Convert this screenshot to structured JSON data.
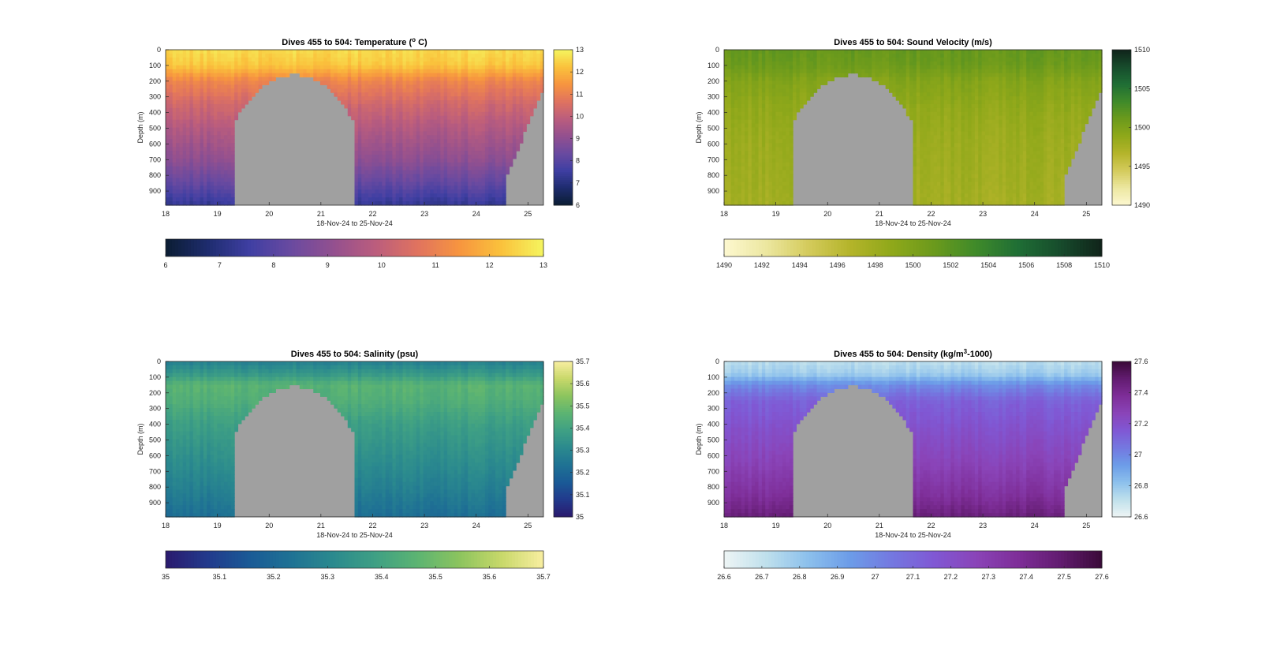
{
  "figure": {
    "y_label": "Depth (m)",
    "x_label": "18-Nov-24 to 25-Nov-24",
    "x_ticks": [
      "18",
      "19",
      "20",
      "21",
      "22",
      "23",
      "24",
      "25"
    ],
    "y_ticks": [
      "0",
      "100",
      "200",
      "300",
      "400",
      "500",
      "600",
      "700",
      "800",
      "900"
    ]
  },
  "chart_data": [
    {
      "type": "heatmap",
      "title": "Dives 455 to 504: Temperature (",
      "title_sup": "o",
      "title_end": " C)",
      "xlim": [
        18,
        25.3
      ],
      "ylim": [
        0,
        990
      ],
      "y_reversed": true,
      "clim": [
        6,
        13
      ],
      "cb_side_ticks": [
        "13",
        "12",
        "11",
        "10",
        "9",
        "8",
        "7",
        "6"
      ],
      "cb_bottom_ticks": [
        "6",
        "7",
        "8",
        "9",
        "10",
        "11",
        "12",
        "13"
      ],
      "colormap": [
        "#0b1d33",
        "#1e2c6e",
        "#3f3fa3",
        "#6a4aa0",
        "#93508f",
        "#bb5d7d",
        "#e0735f",
        "#f7953f",
        "#fac23c",
        "#f5f55f"
      ],
      "profile": [
        {
          "depth": 0,
          "value": 12.6
        },
        {
          "depth": 100,
          "value": 12.3
        },
        {
          "depth": 200,
          "value": 11.1
        },
        {
          "depth": 350,
          "value": 10.3
        },
        {
          "depth": 500,
          "value": 9.7
        },
        {
          "depth": 700,
          "value": 9.0
        },
        {
          "depth": 850,
          "value": 8.2
        },
        {
          "depth": 990,
          "value": 7.3
        }
      ],
      "missing_color": "#a0a0a0"
    },
    {
      "type": "heatmap",
      "title": "Dives 455 to 504: Sound Velocity (m/s)",
      "title_sup": "",
      "title_end": "",
      "xlim": [
        18,
        25.3
      ],
      "ylim": [
        0,
        990
      ],
      "y_reversed": true,
      "clim": [
        1490,
        1510
      ],
      "cb_side_ticks": [
        "1510",
        "1505",
        "1500",
        "1495",
        "1490"
      ],
      "cb_bottom_ticks": [
        "1490",
        "1492",
        "1494",
        "1496",
        "1498",
        "1500",
        "1502",
        "1504",
        "1506",
        "1508",
        "1510"
      ],
      "colormap": [
        "#fdf8d0",
        "#ece7a0",
        "#d4cb5c",
        "#b4b42a",
        "#8fa81a",
        "#6b9a1c",
        "#3f8a2a",
        "#1f6e35",
        "#174c2c",
        "#10231a"
      ],
      "profile": [
        {
          "depth": 0,
          "value": 1501.4
        },
        {
          "depth": 100,
          "value": 1501.0
        },
        {
          "depth": 200,
          "value": 1499.6
        },
        {
          "depth": 400,
          "value": 1498.6
        },
        {
          "depth": 600,
          "value": 1498.1
        },
        {
          "depth": 800,
          "value": 1497.9
        },
        {
          "depth": 990,
          "value": 1497.6
        }
      ],
      "missing_color": "#a0a0a0"
    },
    {
      "type": "heatmap",
      "title": "Dives 455 to 504: Salinity (psu)",
      "title_sup": "",
      "title_end": "",
      "xlim": [
        18,
        25.3
      ],
      "ylim": [
        0,
        990
      ],
      "y_reversed": true,
      "clim": [
        35,
        35.7
      ],
      "cb_side_ticks": [
        "35.7",
        "35.6",
        "35.5",
        "35.4",
        "35.3",
        "35.2",
        "35.1",
        "35"
      ],
      "cb_bottom_ticks": [
        "35",
        "35.1",
        "35.2",
        "35.3",
        "35.4",
        "35.5",
        "35.6",
        "35.7"
      ],
      "colormap": [
        "#2a1a6e",
        "#223a8c",
        "#1a5a96",
        "#1f7294",
        "#2b8a8e",
        "#3fa084",
        "#5cb472",
        "#8cc45e",
        "#c8d86a",
        "#f8eea0"
      ],
      "profile": [
        {
          "depth": 0,
          "value": 35.28
        },
        {
          "depth": 80,
          "value": 35.36
        },
        {
          "depth": 150,
          "value": 35.46
        },
        {
          "depth": 250,
          "value": 35.44
        },
        {
          "depth": 400,
          "value": 35.38
        },
        {
          "depth": 600,
          "value": 35.33
        },
        {
          "depth": 800,
          "value": 35.28
        },
        {
          "depth": 990,
          "value": 35.22
        }
      ],
      "missing_color": "#a0a0a0"
    },
    {
      "type": "heatmap",
      "title": "Dives 455 to 504: Density (kg/m",
      "title_sup": "3",
      "title_end": "-1000)",
      "xlim": [
        18,
        25.3
      ],
      "ylim": [
        0,
        990
      ],
      "y_reversed": true,
      "clim": [
        26.6,
        27.6
      ],
      "cb_side_ticks": [
        "27.6",
        "27.4",
        "27.2",
        "27",
        "26.8",
        "26.6"
      ],
      "cb_bottom_ticks": [
        "26.6",
        "26.7",
        "26.8",
        "26.9",
        "27",
        "27.1",
        "27.2",
        "27.3",
        "27.4",
        "27.5",
        "27.6"
      ],
      "colormap": [
        "#eef5f5",
        "#bfe0ec",
        "#8cc0ec",
        "#6c9ce8",
        "#7478e0",
        "#8058d4",
        "#8a44b8",
        "#7e2e98",
        "#621c70",
        "#3a0a38"
      ],
      "profile": [
        {
          "depth": 0,
          "value": 26.72
        },
        {
          "depth": 80,
          "value": 26.78
        },
        {
          "depth": 150,
          "value": 26.98
        },
        {
          "depth": 250,
          "value": 27.12
        },
        {
          "depth": 450,
          "value": 27.2
        },
        {
          "depth": 650,
          "value": 27.27
        },
        {
          "depth": 850,
          "value": 27.36
        },
        {
          "depth": 990,
          "value": 27.46
        }
      ],
      "missing_color": "#a0a0a0"
    }
  ]
}
